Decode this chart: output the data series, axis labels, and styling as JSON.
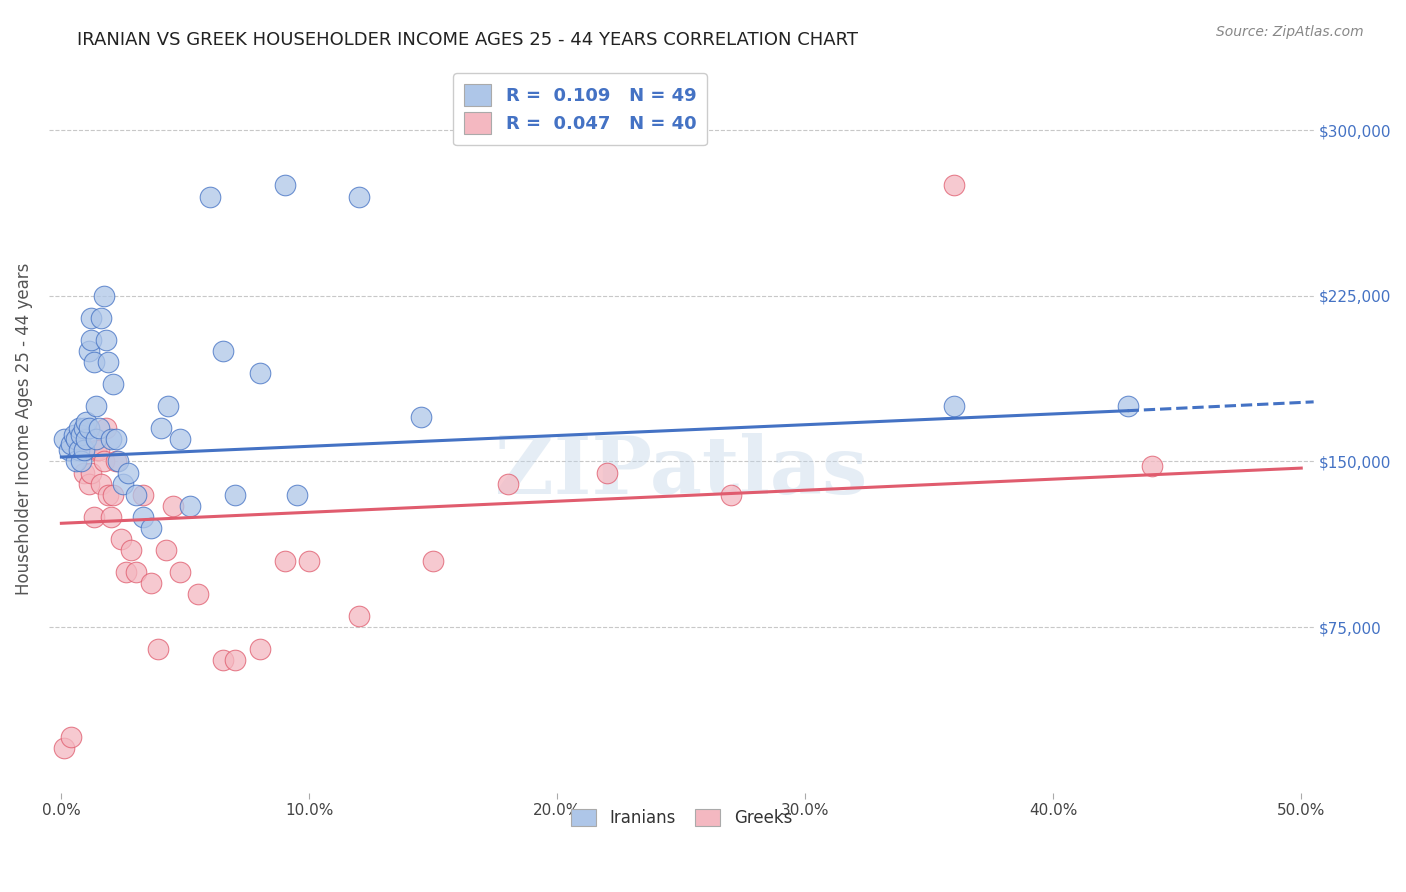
{
  "title": "IRANIAN VS GREEK HOUSEHOLDER INCOME AGES 25 - 44 YEARS CORRELATION CHART",
  "source": "Source: ZipAtlas.com",
  "xlabel_ticks": [
    "0.0%",
    "10.0%",
    "20.0%",
    "30.0%",
    "40.0%",
    "50.0%"
  ],
  "xlabel_tick_vals": [
    0.0,
    0.1,
    0.2,
    0.3,
    0.4,
    0.5
  ],
  "ylabel_ticks": [
    "$75,000",
    "$150,000",
    "$225,000",
    "$300,000"
  ],
  "ylabel_tick_vals": [
    75000,
    150000,
    225000,
    300000
  ],
  "ylabel_label": "Householder Income Ages 25 - 44 years",
  "xlim": [
    -0.005,
    0.505
  ],
  "ylim": [
    0,
    330000
  ],
  "iranians_R": 0.109,
  "iranians_N": 49,
  "greeks_R": 0.047,
  "greeks_N": 40,
  "legend_iranians_color": "#aec6e8",
  "legend_greeks_color": "#f4b8c1",
  "trend_iranian_color": "#4472c4",
  "trend_greek_color": "#e05c6e",
  "scatter_iranian_color": "#aec6e8",
  "scatter_greek_color": "#f4b8c1",
  "background_color": "#ffffff",
  "grid_color": "#c8c8c8",
  "watermark": "ZIPatlas",
  "iranians_x": [
    0.001,
    0.003,
    0.004,
    0.005,
    0.006,
    0.006,
    0.007,
    0.007,
    0.008,
    0.008,
    0.009,
    0.009,
    0.01,
    0.01,
    0.011,
    0.011,
    0.012,
    0.012,
    0.013,
    0.014,
    0.014,
    0.015,
    0.016,
    0.017,
    0.018,
    0.019,
    0.02,
    0.021,
    0.022,
    0.023,
    0.025,
    0.027,
    0.03,
    0.033,
    0.036,
    0.04,
    0.043,
    0.048,
    0.052,
    0.06,
    0.065,
    0.07,
    0.08,
    0.09,
    0.095,
    0.12,
    0.145,
    0.36,
    0.43
  ],
  "iranians_y": [
    160000,
    155000,
    158000,
    162000,
    150000,
    160000,
    155000,
    165000,
    150000,
    162000,
    155000,
    165000,
    160000,
    168000,
    200000,
    165000,
    215000,
    205000,
    195000,
    160000,
    175000,
    165000,
    215000,
    225000,
    205000,
    195000,
    160000,
    185000,
    160000,
    150000,
    140000,
    145000,
    135000,
    125000,
    120000,
    165000,
    175000,
    160000,
    130000,
    270000,
    200000,
    135000,
    190000,
    275000,
    135000,
    270000,
    170000,
    175000,
    175000
  ],
  "greeks_x": [
    0.001,
    0.004,
    0.007,
    0.009,
    0.01,
    0.011,
    0.012,
    0.013,
    0.014,
    0.015,
    0.016,
    0.017,
    0.018,
    0.019,
    0.02,
    0.021,
    0.022,
    0.024,
    0.026,
    0.028,
    0.03,
    0.033,
    0.036,
    0.039,
    0.042,
    0.045,
    0.048,
    0.055,
    0.065,
    0.07,
    0.08,
    0.09,
    0.1,
    0.12,
    0.15,
    0.18,
    0.22,
    0.27,
    0.36,
    0.44
  ],
  "greeks_y": [
    20000,
    25000,
    160000,
    145000,
    155000,
    140000,
    145000,
    125000,
    155000,
    155000,
    140000,
    150000,
    165000,
    135000,
    125000,
    135000,
    150000,
    115000,
    100000,
    110000,
    100000,
    135000,
    95000,
    65000,
    110000,
    130000,
    100000,
    90000,
    60000,
    60000,
    65000,
    105000,
    105000,
    80000,
    105000,
    140000,
    145000,
    135000,
    275000,
    148000
  ],
  "iran_trend_x0": 0.0,
  "iran_trend_y0": 152000,
  "iran_trend_x1": 0.43,
  "iran_trend_y1": 173000,
  "iran_trend_dash_x1": 0.505,
  "iran_trend_dash_y1": 177000,
  "greek_trend_x0": 0.0,
  "greek_trend_y0": 122000,
  "greek_trend_x1": 0.5,
  "greek_trend_y1": 147000
}
